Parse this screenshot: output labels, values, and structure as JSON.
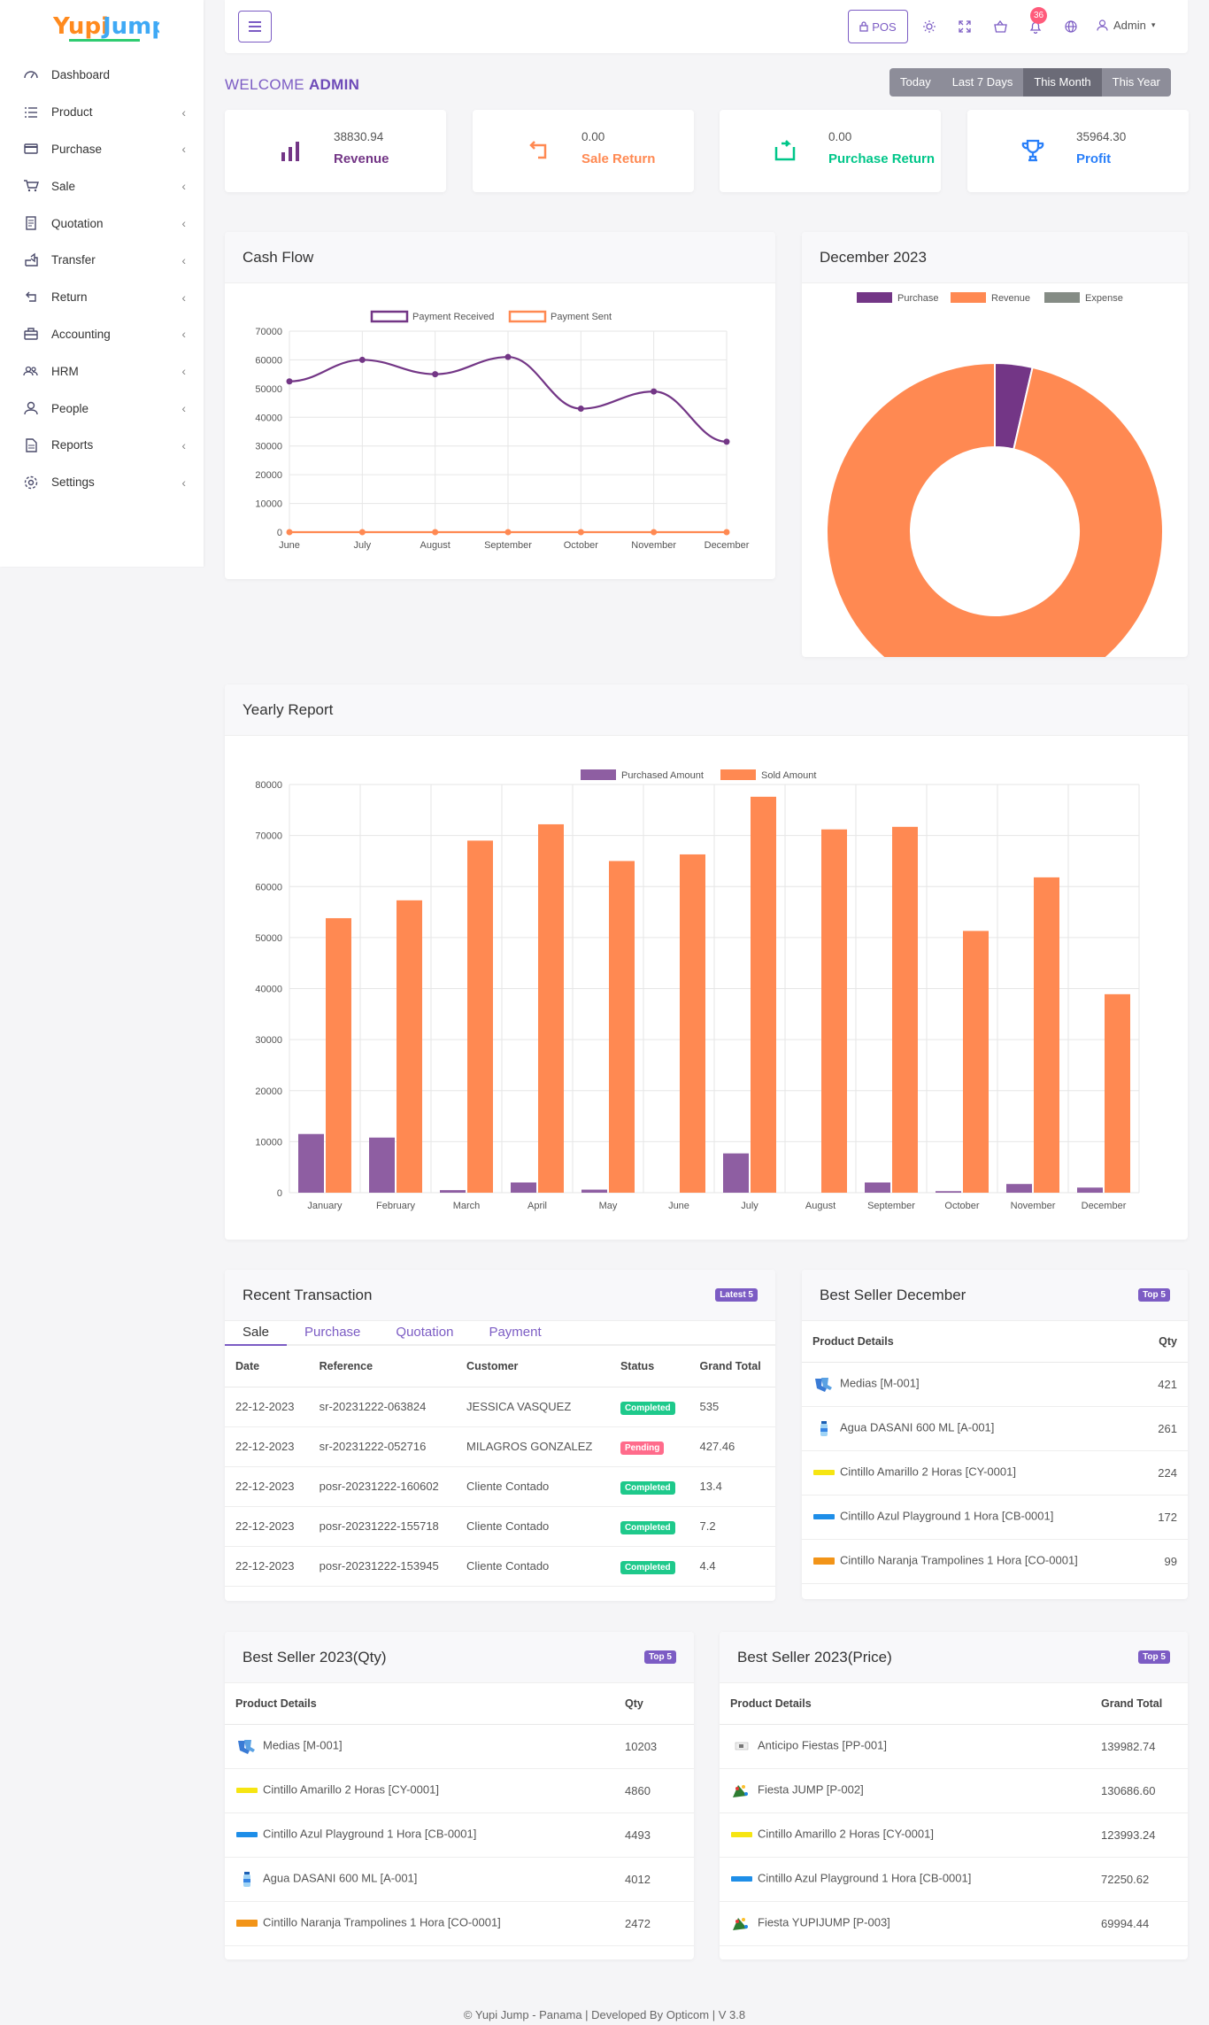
{
  "sidebar": {
    "items": [
      {
        "label": "Dashboard",
        "icon": "dashboard-icon",
        "chevron": ""
      },
      {
        "label": "Product",
        "icon": "list-icon",
        "chevron": "‹"
      },
      {
        "label": "Purchase",
        "icon": "card-icon",
        "chevron": "‹"
      },
      {
        "label": "Sale",
        "icon": "cart-icon",
        "chevron": "‹"
      },
      {
        "label": "Quotation",
        "icon": "document-icon",
        "chevron": "‹"
      },
      {
        "label": "Transfer",
        "icon": "share-icon",
        "chevron": "‹"
      },
      {
        "label": "Return",
        "icon": "return-icon",
        "chevron": "‹"
      },
      {
        "label": "Accounting",
        "icon": "briefcase-icon",
        "chevron": "‹"
      },
      {
        "label": "HRM",
        "icon": "users-icon",
        "chevron": "‹"
      },
      {
        "label": "People",
        "icon": "user-icon",
        "chevron": "‹"
      },
      {
        "label": "Reports",
        "icon": "report-icon",
        "chevron": "‹"
      },
      {
        "label": "Settings",
        "icon": "gear-icon",
        "chevron": "‹"
      }
    ]
  },
  "header": {
    "pos_label": "POS",
    "notification_count": "36",
    "user_label": "Admin"
  },
  "welcome": {
    "prefix": "WELCOME ",
    "name": "ADMIN"
  },
  "period": [
    "Today",
    "Last 7 Days",
    "This Month",
    "This Year"
  ],
  "stats": [
    {
      "value": "38830.94",
      "label": "Revenue",
      "color": "#733686"
    },
    {
      "value": "0.00",
      "label": "Sale Return",
      "color": "#ff8952"
    },
    {
      "value": "0.00",
      "label": "Purchase Return",
      "color": "#00c689"
    },
    {
      "value": "35964.30",
      "label": "Profit",
      "color": "#297ff9"
    }
  ],
  "cashflow": {
    "title": "Cash Flow",
    "chart_data": {
      "type": "line",
      "categories": [
        "June",
        "July",
        "August",
        "September",
        "October",
        "November",
        "December"
      ],
      "series": [
        {
          "name": "Payment Received",
          "values": [
            52500,
            60000,
            55000,
            61000,
            43000,
            49000,
            31500
          ],
          "color": "#733686"
        },
        {
          "name": "Payment Sent",
          "values": [
            0,
            0,
            0,
            0,
            0,
            0,
            0
          ],
          "color": "#ff8952"
        }
      ],
      "ylim": [
        0,
        70000
      ],
      "yticks": [
        0,
        10000,
        20000,
        30000,
        40000,
        50000,
        60000,
        70000
      ]
    }
  },
  "donut": {
    "title": "December 2023",
    "chart_data": {
      "type": "pie",
      "labels": [
        "Purchase",
        "Revenue",
        "Expense"
      ],
      "values": [
        1450,
        38830.94,
        0
      ],
      "colors": [
        "#733686",
        "#ff8952",
        "#858c85"
      ]
    }
  },
  "yearly": {
    "title": "Yearly Report",
    "chart_data": {
      "type": "bar",
      "categories": [
        "January",
        "February",
        "March",
        "April",
        "May",
        "June",
        "July",
        "August",
        "September",
        "October",
        "November",
        "December"
      ],
      "series": [
        {
          "name": "Purchased Amount",
          "values": [
            11500,
            10800,
            500,
            2000,
            600,
            0,
            7700,
            0,
            2000,
            300,
            1700,
            1000
          ],
          "color": "#8e5ea2"
        },
        {
          "name": "Sold Amount",
          "values": [
            53800,
            57300,
            69000,
            72200,
            65000,
            66300,
            77600,
            71200,
            71700,
            51300,
            61800,
            38900
          ],
          "color": "#ff8952"
        }
      ],
      "ylim": [
        0,
        80000
      ],
      "yticks": [
        0,
        10000,
        20000,
        30000,
        40000,
        50000,
        60000,
        70000,
        80000
      ]
    }
  },
  "recent": {
    "title": "Recent Transaction",
    "badge": "Latest 5",
    "tabs": [
      "Sale",
      "Purchase",
      "Quotation",
      "Payment"
    ],
    "columns": [
      "Date",
      "Reference",
      "Customer",
      "Status",
      "Grand Total"
    ],
    "rows": [
      {
        "date": "22-12-2023",
        "ref": "sr-20231222-063824",
        "customer": "JESSICA VASQUEZ",
        "status": "Completed",
        "total": "535"
      },
      {
        "date": "22-12-2023",
        "ref": "sr-20231222-052716",
        "customer": "MILAGROS GONZALEZ",
        "status": "Pending",
        "total": "427.46"
      },
      {
        "date": "22-12-2023",
        "ref": "posr-20231222-160602",
        "customer": "Cliente Contado",
        "status": "Completed",
        "total": "13.4"
      },
      {
        "date": "22-12-2023",
        "ref": "posr-20231222-155718",
        "customer": "Cliente Contado",
        "status": "Completed",
        "total": "7.2"
      },
      {
        "date": "22-12-2023",
        "ref": "posr-20231222-153945",
        "customer": "Cliente Contado",
        "status": "Completed",
        "total": "4.4"
      }
    ]
  },
  "best_december": {
    "title": "Best Seller December",
    "badge": "Top 5",
    "columns": [
      "Product Details",
      "Qty"
    ],
    "rows": [
      {
        "product": "Medias [M-001]",
        "value": "421",
        "thumb": "socks"
      },
      {
        "product": "Agua DASANI 600 ML [A-001]",
        "value": "261",
        "thumb": "bottle"
      },
      {
        "product": "Cintillo Amarillo 2 Horas [CY-0001]",
        "value": "224",
        "thumb": "yellow"
      },
      {
        "product": "Cintillo Azul Playground 1 Hora [CB-0001]",
        "value": "172",
        "thumb": "blue"
      },
      {
        "product": "Cintillo Naranja Trampolines 1 Hora [CO-0001]",
        "value": "99",
        "thumb": "orange"
      }
    ]
  },
  "best_qty": {
    "title": "Best Seller 2023(Qty)",
    "badge": "Top 5",
    "columns": [
      "Product Details",
      "Qty"
    ],
    "rows": [
      {
        "product": "Medias [M-001]",
        "value": "10203",
        "thumb": "socks"
      },
      {
        "product": "Cintillo Amarillo 2 Horas [CY-0001]",
        "value": "4860",
        "thumb": "yellow"
      },
      {
        "product": "Cintillo Azul Playground 1 Hora [CB-0001]",
        "value": "4493",
        "thumb": "blue"
      },
      {
        "product": "Agua DASANI 600 ML [A-001]",
        "value": "4012",
        "thumb": "bottle"
      },
      {
        "product": "Cintillo Naranja Trampolines 1 Hora [CO-0001]",
        "value": "2472",
        "thumb": "orange"
      }
    ]
  },
  "best_price": {
    "title": "Best Seller 2023(Price)",
    "badge": "Top 5",
    "columns": [
      "Product Details",
      "Grand Total"
    ],
    "rows": [
      {
        "product": "Anticipo Fiestas [PP-001]",
        "value": "139982.74",
        "thumb": "ticket"
      },
      {
        "product": "Fiesta JUMP [P-002]",
        "value": "130686.60",
        "thumb": "party"
      },
      {
        "product": "Cintillo Amarillo 2 Horas [CY-0001]",
        "value": "123993.24",
        "thumb": "yellow"
      },
      {
        "product": "Cintillo Azul Playground 1 Hora [CB-0001]",
        "value": "72250.62",
        "thumb": "blue"
      },
      {
        "product": "Fiesta YUPIJUMP [P-003]",
        "value": "69994.44",
        "thumb": "party"
      }
    ]
  },
  "footer": "© Yupi Jump - Panama | Developed By Opticom | V 3.8"
}
